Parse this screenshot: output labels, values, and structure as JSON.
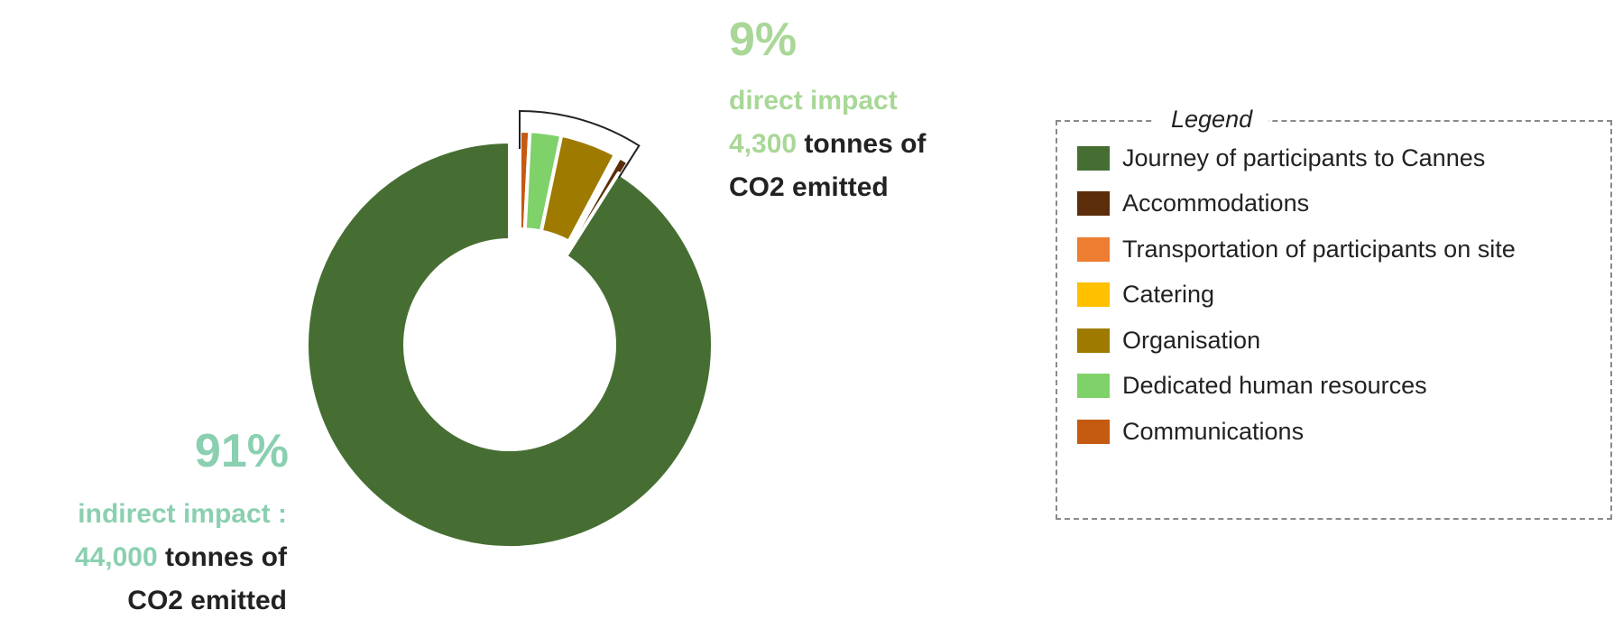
{
  "chart_data": {
    "type": "pie",
    "variant": "donut",
    "legend_position": "right",
    "legend_title": "Legend",
    "categories": [
      "Journey of participants  to Cannes",
      "Accommodations",
      "Transportation  of participants  on site",
      "Catering",
      "Organisation",
      "Dedicated human  resources",
      "Communications"
    ],
    "colors": [
      "#466e32",
      "#5b2d0a",
      "#ed7d31",
      "#ffc000",
      "#9e7a00",
      "#7fd16a",
      "#c55a11"
    ],
    "values": [
      91.0,
      0.8,
      0.1,
      0.3,
      4.5,
      2.5,
      0.8
    ],
    "annotations": {
      "indirect": {
        "percent": "91%",
        "label": "indirect impact :",
        "amount": "44,000",
        "unit_line1": "tonnes of",
        "unit_line2": "CO2 emitted"
      },
      "direct": {
        "percent": "9%",
        "label": "direct impact",
        "amount": "4,300",
        "unit_line1": "tonnes of",
        "unit_line2": "CO2 emitted"
      }
    }
  }
}
